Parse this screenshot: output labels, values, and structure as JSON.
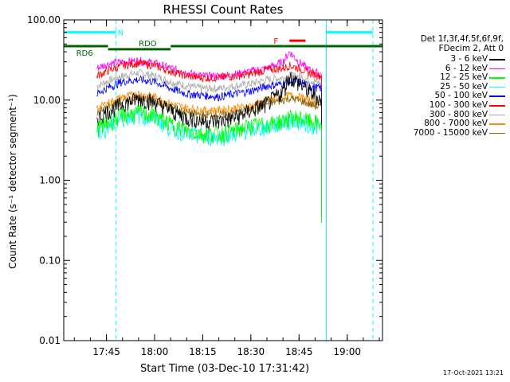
{
  "chart_data": {
    "type": "line",
    "title": "RHESSI Count Rates",
    "xlabel": "Start Time (03-Dec-10 17:31:42)",
    "ylabel": "Count Rate (s⁻¹ detector segment⁻¹)",
    "yscale": "log",
    "ylim": [
      0.01,
      100
    ],
    "xlim": [
      "17:31:42",
      "19:11:00"
    ],
    "x_ticks": [
      "17:45",
      "18:00",
      "18:15",
      "18:30",
      "18:45",
      "19:00"
    ],
    "y_ticks": [
      "0.01",
      "0.10",
      "1.00",
      "10.00",
      "100.00"
    ],
    "legend_title": [
      "Det 1f,3f,4f,5f,6f,9f,",
      "FDecim 2, Att 0"
    ],
    "legend_position": "right",
    "x": [
      "17:42",
      "17:45",
      "17:50",
      "17:55",
      "18:00",
      "18:05",
      "18:10",
      "18:15",
      "18:20",
      "18:25",
      "18:30",
      "18:35",
      "18:40",
      "18:42",
      "18:45",
      "18:48",
      "18:52"
    ],
    "series": [
      {
        "name": "3 - 6 keV",
        "color": "#000000",
        "values": [
          6,
          7,
          9,
          10.5,
          9.5,
          7.5,
          6,
          5.5,
          5.5,
          6,
          7.5,
          9,
          13,
          20,
          16,
          13,
          10
        ]
      },
      {
        "name": "6 - 12 keV",
        "color": "#ff00ff",
        "values": [
          25,
          28,
          30,
          31,
          29,
          25,
          22,
          20,
          20,
          21,
          23,
          25,
          30,
          40,
          30,
          24,
          21
        ]
      },
      {
        "name": "12 - 25 keV",
        "color": "#00ff00",
        "values": [
          4.5,
          5,
          6.5,
          7,
          6.5,
          5,
          4.2,
          3.8,
          3.8,
          4.2,
          4.8,
          5,
          5.5,
          6,
          6,
          5.5,
          5
        ]
      },
      {
        "name": "25 - 50 keV",
        "color": "#00ffff",
        "values": [
          4,
          4.5,
          6,
          6.5,
          6,
          4.5,
          3.8,
          3.5,
          3.5,
          3.8,
          4.3,
          4.6,
          5.2,
          5.5,
          5.5,
          5,
          4.5
        ]
      },
      {
        "name": "50 - 100 keV",
        "color": "#0000ff",
        "values": [
          12,
          14,
          17,
          18,
          17,
          14,
          12,
          11.5,
          11,
          12,
          13,
          15,
          16,
          17,
          17,
          15,
          14
        ]
      },
      {
        "name": "100 - 300 keV",
        "color": "#ff0000",
        "values": [
          20,
          23,
          27,
          29,
          27,
          23,
          20,
          19,
          19,
          20,
          21,
          24,
          25,
          27,
          25,
          22,
          20
        ]
      },
      {
        "name": "300 - 800 keV",
        "color": "#aaaaaa",
        "values": [
          15,
          17,
          20,
          22,
          20,
          17,
          15,
          14,
          14,
          15,
          16,
          18,
          19,
          20,
          20,
          18,
          16
        ]
      },
      {
        "name": "800 - 7000 keV",
        "color": "#ff8c00",
        "values": [
          8,
          9,
          11,
          12,
          11,
          9,
          8,
          7.5,
          7.5,
          8,
          8.5,
          10,
          11,
          11.5,
          11,
          10,
          9
        ]
      },
      {
        "name": "7000 - 15000 keV",
        "color": "#8b6914",
        "values": [
          7,
          8,
          9.5,
          10.5,
          9.5,
          8,
          7,
          6.5,
          6.5,
          7,
          7.5,
          9,
          10,
          10.5,
          10,
          9,
          8
        ]
      }
    ],
    "annotations": [
      {
        "label": "N",
        "color": "#00ffff",
        "level": 70,
        "spans": [
          [
            "17:31:42",
            "17:48:00"
          ],
          [
            "18:53:30",
            "19:08:00"
          ]
        ]
      },
      {
        "label": "RD6",
        "color": "#006400",
        "level": 47,
        "spans": [
          [
            "17:31:42",
            "17:45:30"
          ]
        ]
      },
      {
        "label": "RDO",
        "color": "#006400",
        "level": 43,
        "spans": [
          [
            "17:45:30",
            "18:05:00"
          ]
        ]
      },
      {
        "label": "",
        "color": "#006400",
        "level": 47,
        "spans": [
          [
            "18:05:00",
            "18:32:00"
          ],
          [
            "18:32:00",
            "18:40:00"
          ],
          [
            "18:40:00",
            "19:11:00"
          ]
        ]
      },
      {
        "label": "F",
        "color": "#ff0000",
        "level": 55,
        "spans": [
          [
            "18:42:00",
            "18:47:00"
          ]
        ]
      }
    ],
    "grid": false
  },
  "timestamp": "17-Oct-2021 13:21"
}
